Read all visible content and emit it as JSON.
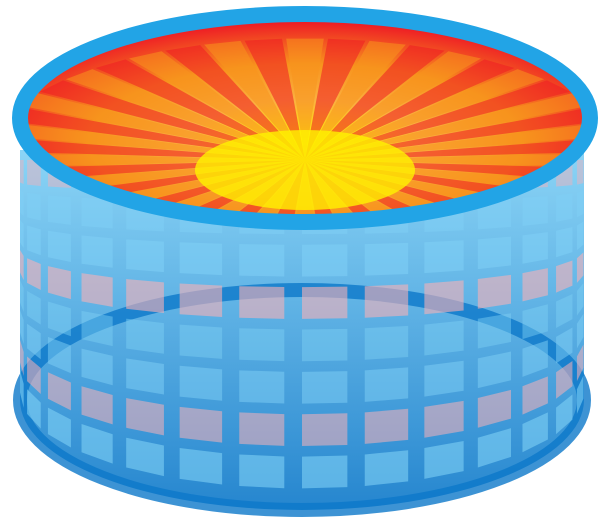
{
  "illustration": {
    "subject": "abstract-3d-drum",
    "colors": {
      "rim": "#22a4e6",
      "body_top": "#7fd0f5",
      "body_bottom": "#0d78c9",
      "pink_stripe": "#f7b0b8",
      "interior_outer": "#ee1c25",
      "interior_mid": "#f7941d",
      "interior_core": "#fff200",
      "background": "#ffffff"
    }
  }
}
